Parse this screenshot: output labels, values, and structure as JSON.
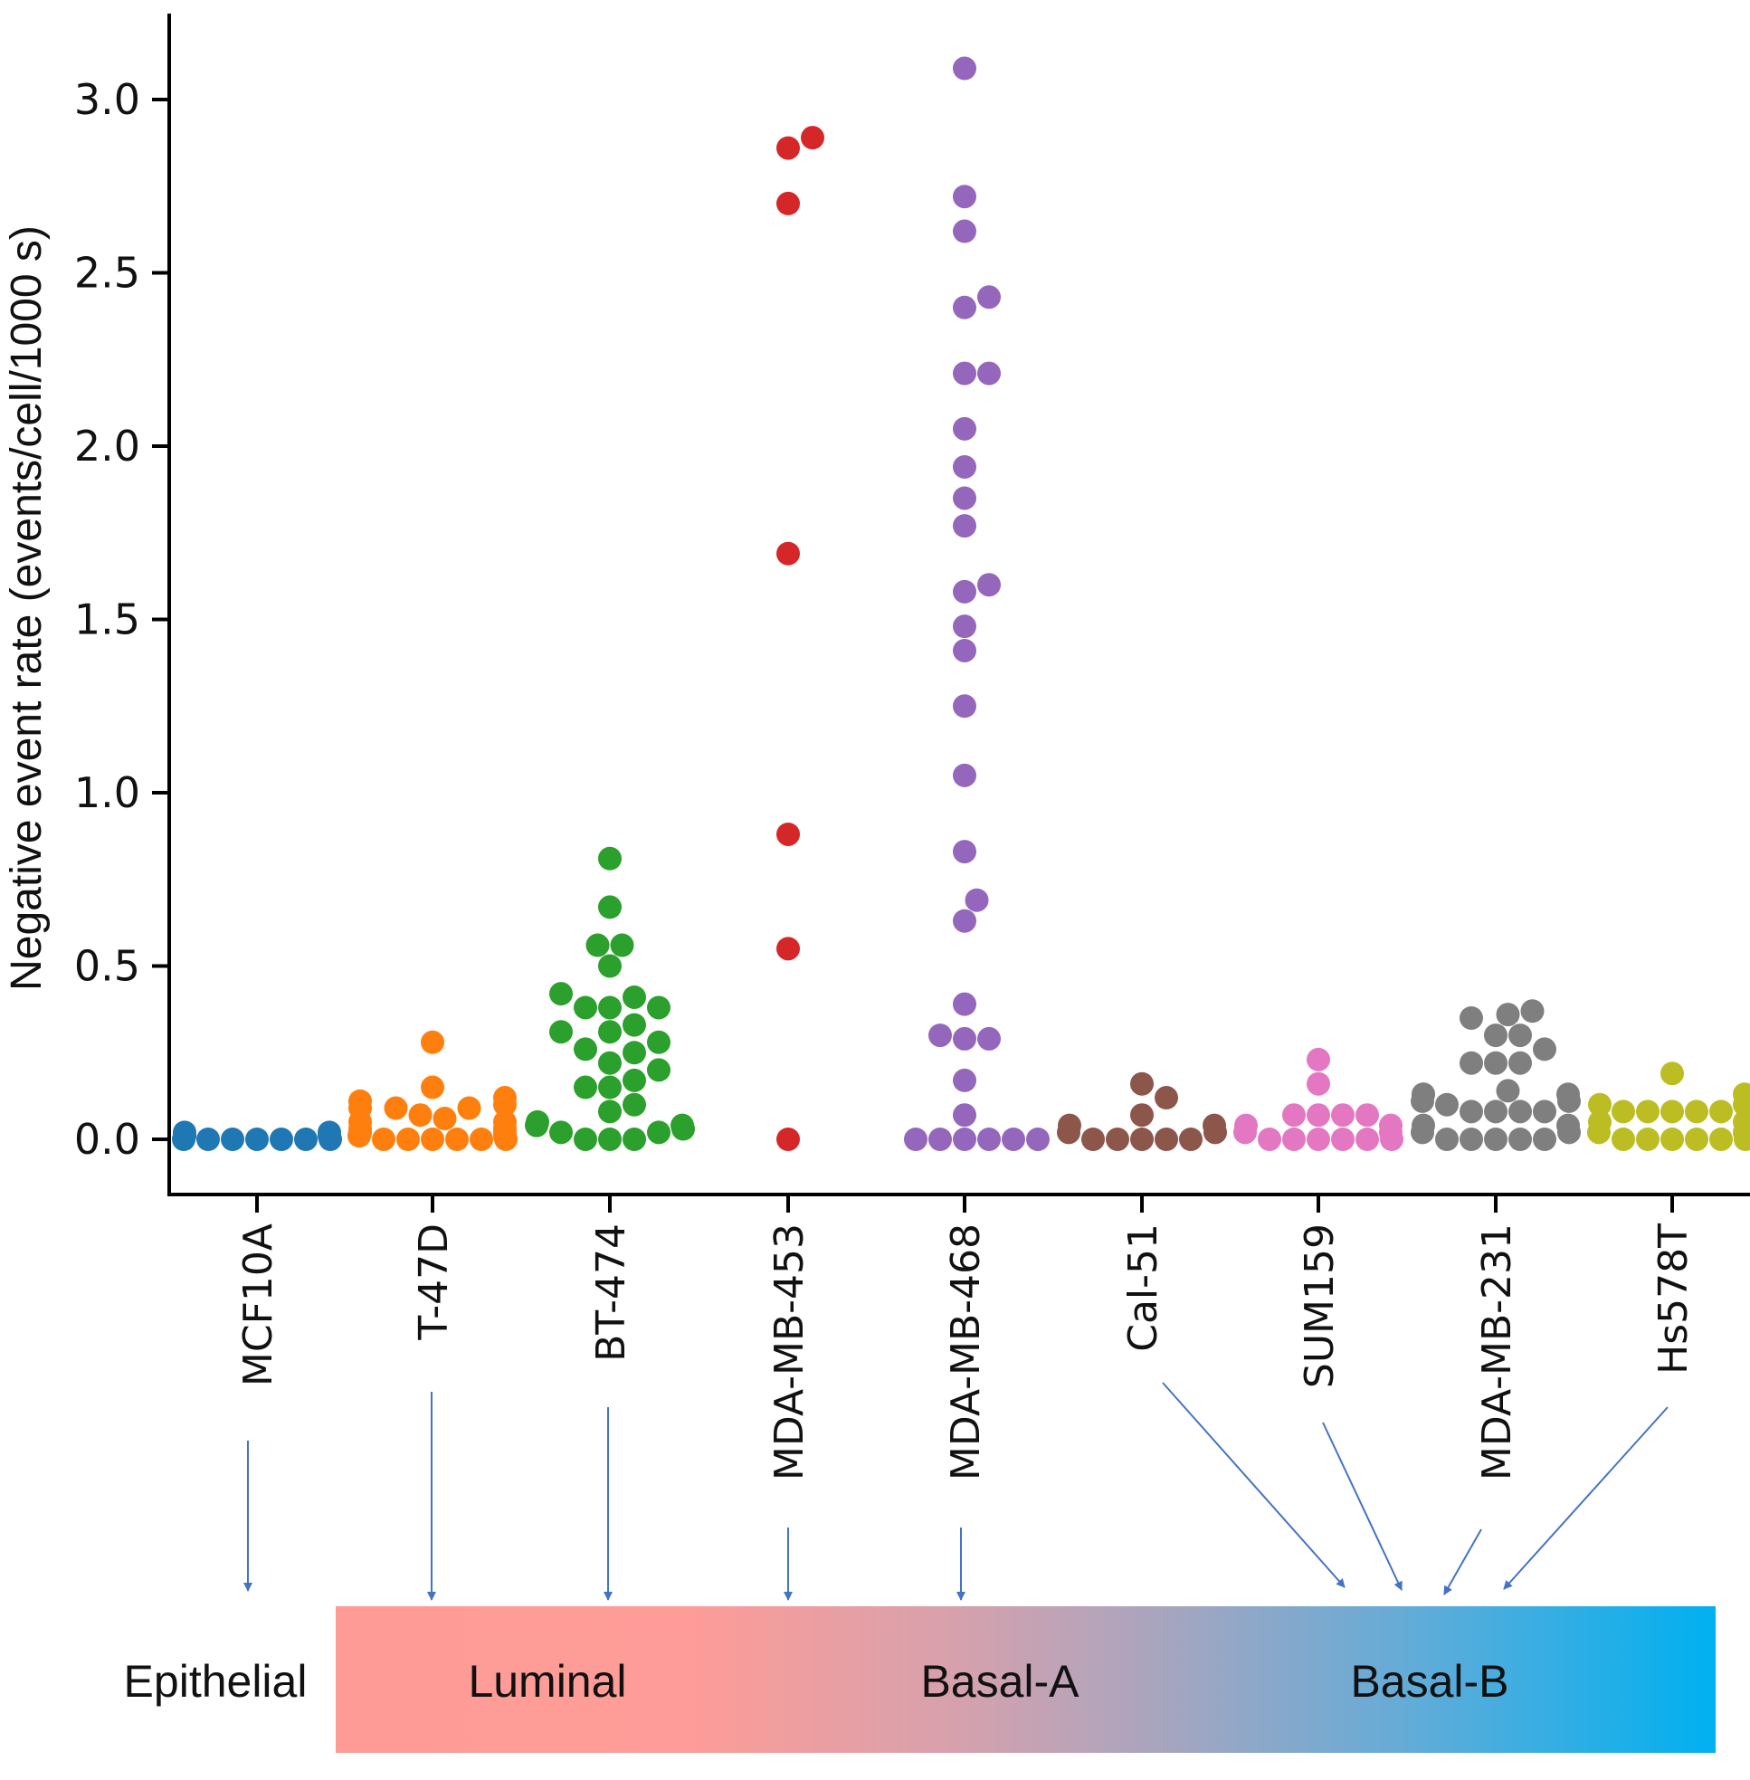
{
  "chart_data": {
    "type": "scatter",
    "subtype": "swarm",
    "title": "",
    "xlabel": "",
    "ylabel": "Negative event rate (events/cell/1000 s)",
    "ylim": [
      -0.15,
      3.25
    ],
    "yticks": [
      0.0,
      0.5,
      1.0,
      1.5,
      2.0,
      2.5,
      3.0
    ],
    "ytick_labels": [
      "0.0",
      "0.5",
      "1.0",
      "1.5",
      "2.0",
      "2.5",
      "3.0"
    ],
    "grid": false,
    "legend": null,
    "categories": [
      "MCF10A",
      "T-47D",
      "BT-474",
      "MDA-MB-453",
      "MDA-MB-468",
      "Cal-51",
      "SUM159",
      "MDA-MB-231",
      "Hs578T"
    ],
    "series": [
      {
        "name": "MCF10A",
        "color": "#1f77b4",
        "values": [
          0.0,
          0.0,
          0.0,
          0.0,
          0.0,
          0.0,
          0.0,
          0.01,
          0.01,
          0.02,
          0.02
        ]
      },
      {
        "name": "T-47D",
        "color": "#ff7f0e",
        "values": [
          0.28,
          0.15,
          0.12,
          0.11,
          0.1,
          0.09,
          0.09,
          0.09,
          0.07,
          0.06,
          0.05,
          0.05,
          0.02,
          0.02,
          0.0,
          0.0,
          0.0,
          0.0,
          0.0,
          0.0,
          0.01,
          0.01,
          0.03,
          0.03
        ]
      },
      {
        "name": "BT-474",
        "color": "#2ca02c",
        "values": [
          0.81,
          0.67,
          0.56,
          0.56,
          0.5,
          0.42,
          0.41,
          0.38,
          0.38,
          0.38,
          0.33,
          0.31,
          0.31,
          0.28,
          0.26,
          0.25,
          0.22,
          0.2,
          0.17,
          0.15,
          0.15,
          0.1,
          0.08,
          0.05,
          0.04,
          0.04,
          0.03,
          0.02,
          0.02,
          0.0,
          0.0,
          0.0
        ]
      },
      {
        "name": "MDA-MB-453",
        "color": "#d62728",
        "values": [
          2.89,
          2.86,
          2.7,
          1.69,
          0.88,
          0.55,
          0.0
        ]
      },
      {
        "name": "MDA-MB-468",
        "color": "#9467bd",
        "values": [
          3.09,
          2.72,
          2.62,
          2.43,
          2.4,
          2.21,
          2.21,
          2.05,
          1.94,
          1.85,
          1.77,
          1.6,
          1.58,
          1.48,
          1.41,
          1.25,
          1.05,
          0.83,
          0.69,
          0.63,
          0.39,
          0.29,
          0.29,
          0.3,
          0.17,
          0.07,
          0.0,
          0.0,
          0.0,
          0.0,
          0.0,
          0.0
        ]
      },
      {
        "name": "Cal-51",
        "color": "#8c564b",
        "values": [
          0.16,
          0.12,
          0.07,
          0.0,
          0.0,
          0.0,
          0.0,
          0.0,
          0.02,
          0.04,
          0.02,
          0.04
        ]
      },
      {
        "name": "SUM159",
        "color": "#e377c2",
        "values": [
          0.23,
          0.16,
          0.07,
          0.07,
          0.07,
          0.07,
          0.0,
          0.0,
          0.0,
          0.0,
          0.0,
          0.0,
          0.02,
          0.04,
          0.02,
          0.04
        ]
      },
      {
        "name": "MDA-MB-231",
        "color": "#7f7f7f",
        "values": [
          0.37,
          0.36,
          0.35,
          0.3,
          0.3,
          0.26,
          0.22,
          0.22,
          0.22,
          0.14,
          0.13,
          0.13,
          0.13,
          0.1,
          0.08,
          0.08,
          0.08,
          0.08,
          0.0,
          0.0,
          0.0,
          0.0,
          0.0,
          0.02,
          0.04,
          0.02,
          0.04,
          0.11,
          0.11
        ]
      },
      {
        "name": "Hs578T",
        "color": "#bcbd22",
        "values": [
          0.19,
          0.13,
          0.08,
          0.08,
          0.08,
          0.08,
          0.08,
          0.0,
          0.0,
          0.0,
          0.0,
          0.0,
          0.0,
          0.02,
          0.05,
          0.1,
          0.02,
          0.05,
          0.1
        ]
      }
    ],
    "subtype_band": {
      "labels": [
        "Epithelial",
        "Luminal",
        "Basal-A",
        "Basal-B"
      ],
      "gradient_colors": [
        "#ff9b96",
        "#ff9e9a",
        "#b9a2b6",
        "#6fa9d1",
        "#00b0f0"
      ],
      "arrow_color": "#4472c4",
      "mapping": {
        "MCF10A": "Epithelial",
        "T-47D": "Luminal",
        "BT-474": "Luminal",
        "MDA-MB-453": "Luminal/Basal-A boundary",
        "MDA-MB-468": "Basal-A",
        "Cal-51": "Basal-B",
        "SUM159": "Basal-B",
        "MDA-MB-231": "Basal-B",
        "Hs578T": "Basal-B"
      }
    }
  }
}
